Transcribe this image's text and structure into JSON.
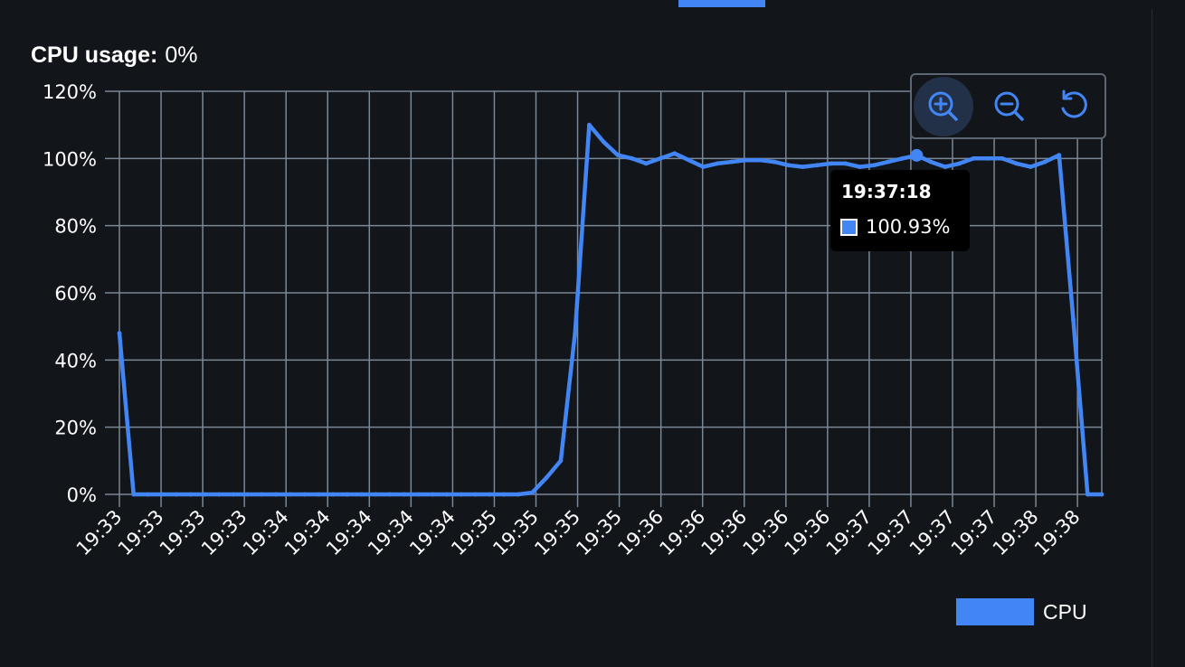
{
  "header": {
    "usage_label": "CPU usage:",
    "usage_value": "0%"
  },
  "toolbar": {
    "icons": [
      "zoom-in-icon",
      "zoom-out-icon",
      "reset-icon"
    ]
  },
  "tooltip": {
    "time": "19:37:18",
    "value": "100.93%"
  },
  "colors": {
    "background": "#12151a",
    "series": "#4285f4",
    "grid": "#7a8796",
    "text": "#ffffff"
  },
  "chart_data": {
    "type": "line",
    "title": "",
    "xlabel": "",
    "ylabel": "",
    "ylim": [
      0,
      120
    ],
    "y_ticks": [
      "0%",
      "20%",
      "40%",
      "60%",
      "80%",
      "100%",
      "120%"
    ],
    "x_ticks": [
      "19:33",
      "19:33",
      "19:33",
      "19:33",
      "19:34",
      "19:34",
      "19:34",
      "19:34",
      "19:34",
      "19:35",
      "19:35",
      "19:35",
      "19:35",
      "19:36",
      "19:36",
      "19:36",
      "19:36",
      "19:36",
      "19:37",
      "19:37",
      "19:37",
      "19:37",
      "19:38",
      "19:38"
    ],
    "grid": true,
    "legend": "bottom-right",
    "series": [
      {
        "name": "CPU",
        "color": "#4285f4",
        "values": [
          48,
          0,
          0,
          0,
          0,
          0,
          0,
          0,
          0,
          0,
          0,
          0,
          0,
          0,
          0,
          0,
          0,
          0,
          0,
          0,
          0,
          0,
          0,
          0,
          0,
          0,
          0,
          0,
          0,
          0.5,
          5,
          10,
          48,
          110,
          105,
          101,
          100,
          98.5,
          100,
          101.5,
          99.5,
          97.5,
          98.5,
          99,
          99.5,
          99.5,
          99,
          98,
          97.5,
          98,
          98.5,
          98.5,
          97.5,
          98,
          99,
          100,
          100.93,
          99,
          97.5,
          98.5,
          100,
          100,
          100,
          98.5,
          97.5,
          99,
          101,
          52,
          0,
          0
        ]
      }
    ],
    "highlight": {
      "time": "19:37:18",
      "value": 100.93
    }
  }
}
